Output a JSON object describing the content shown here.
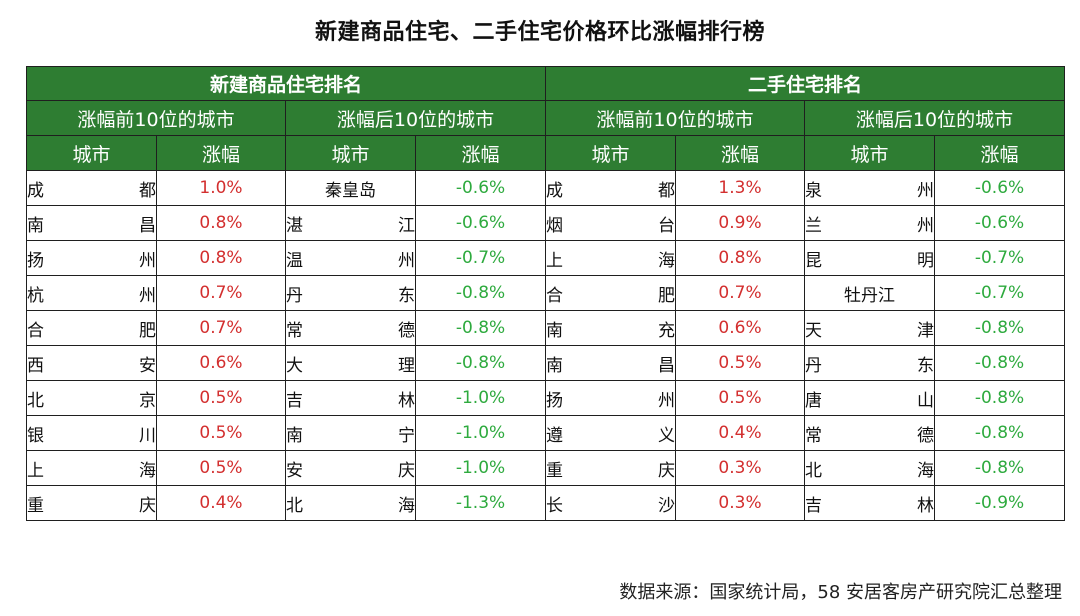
{
  "title": "新建商品住宅、二手住宅价格环比涨幅排行榜",
  "sections": {
    "new": "新建商品住宅排名",
    "used": "二手住宅排名"
  },
  "subheaders": {
    "top": "涨幅前10位的城市",
    "bottom": "涨幅后10位的城市"
  },
  "columns": {
    "city": "城市",
    "change": "涨幅"
  },
  "colors": {
    "header_green": "#2e7d32",
    "up_red": "#d32f2f",
    "down_green": "#2eaa3e"
  },
  "rows": [
    {
      "n_top_c": [
        "成",
        "都"
      ],
      "n_top_v": "1.0%",
      "n_bot_c": [
        "秦皇岛"
      ],
      "n_bot_v": "-0.6%",
      "u_top_c": [
        "成",
        "都"
      ],
      "u_top_v": "1.3%",
      "u_bot_c": [
        "泉",
        "州"
      ],
      "u_bot_v": "-0.6%"
    },
    {
      "n_top_c": [
        "南",
        "昌"
      ],
      "n_top_v": "0.8%",
      "n_bot_c": [
        "湛",
        "江"
      ],
      "n_bot_v": "-0.6%",
      "u_top_c": [
        "烟",
        "台"
      ],
      "u_top_v": "0.9%",
      "u_bot_c": [
        "兰",
        "州"
      ],
      "u_bot_v": "-0.6%"
    },
    {
      "n_top_c": [
        "扬",
        "州"
      ],
      "n_top_v": "0.8%",
      "n_bot_c": [
        "温",
        "州"
      ],
      "n_bot_v": "-0.7%",
      "u_top_c": [
        "上",
        "海"
      ],
      "u_top_v": "0.8%",
      "u_bot_c": [
        "昆",
        "明"
      ],
      "u_bot_v": "-0.7%"
    },
    {
      "n_top_c": [
        "杭",
        "州"
      ],
      "n_top_v": "0.7%",
      "n_bot_c": [
        "丹",
        "东"
      ],
      "n_bot_v": "-0.8%",
      "u_top_c": [
        "合",
        "肥"
      ],
      "u_top_v": "0.7%",
      "u_bot_c": [
        "牡丹江"
      ],
      "u_bot_v": "-0.7%"
    },
    {
      "n_top_c": [
        "合",
        "肥"
      ],
      "n_top_v": "0.7%",
      "n_bot_c": [
        "常",
        "德"
      ],
      "n_bot_v": "-0.8%",
      "u_top_c": [
        "南",
        "充"
      ],
      "u_top_v": "0.6%",
      "u_bot_c": [
        "天",
        "津"
      ],
      "u_bot_v": "-0.8%"
    },
    {
      "n_top_c": [
        "西",
        "安"
      ],
      "n_top_v": "0.6%",
      "n_bot_c": [
        "大",
        "理"
      ],
      "n_bot_v": "-0.8%",
      "u_top_c": [
        "南",
        "昌"
      ],
      "u_top_v": "0.5%",
      "u_bot_c": [
        "丹",
        "东"
      ],
      "u_bot_v": "-0.8%"
    },
    {
      "n_top_c": [
        "北",
        "京"
      ],
      "n_top_v": "0.5%",
      "n_bot_c": [
        "吉",
        "林"
      ],
      "n_bot_v": "-1.0%",
      "u_top_c": [
        "扬",
        "州"
      ],
      "u_top_v": "0.5%",
      "u_bot_c": [
        "唐",
        "山"
      ],
      "u_bot_v": "-0.8%"
    },
    {
      "n_top_c": [
        "银",
        "川"
      ],
      "n_top_v": "0.5%",
      "n_bot_c": [
        "南",
        "宁"
      ],
      "n_bot_v": "-1.0%",
      "u_top_c": [
        "遵",
        "义"
      ],
      "u_top_v": "0.4%",
      "u_bot_c": [
        "常",
        "德"
      ],
      "u_bot_v": "-0.8%"
    },
    {
      "n_top_c": [
        "上",
        "海"
      ],
      "n_top_v": "0.5%",
      "n_bot_c": [
        "安",
        "庆"
      ],
      "n_bot_v": "-1.0%",
      "u_top_c": [
        "重",
        "庆"
      ],
      "u_top_v": "0.3%",
      "u_bot_c": [
        "北",
        "海"
      ],
      "u_bot_v": "-0.8%"
    },
    {
      "n_top_c": [
        "重",
        "庆"
      ],
      "n_top_v": "0.4%",
      "n_bot_c": [
        "北",
        "海"
      ],
      "n_bot_v": "-1.3%",
      "u_top_c": [
        "长",
        "沙"
      ],
      "u_top_v": "0.3%",
      "u_bot_c": [
        "吉",
        "林"
      ],
      "u_bot_v": "-0.9%"
    }
  ],
  "source": "数据来源：国家统计局，58 安居客房产研究院汇总整理"
}
